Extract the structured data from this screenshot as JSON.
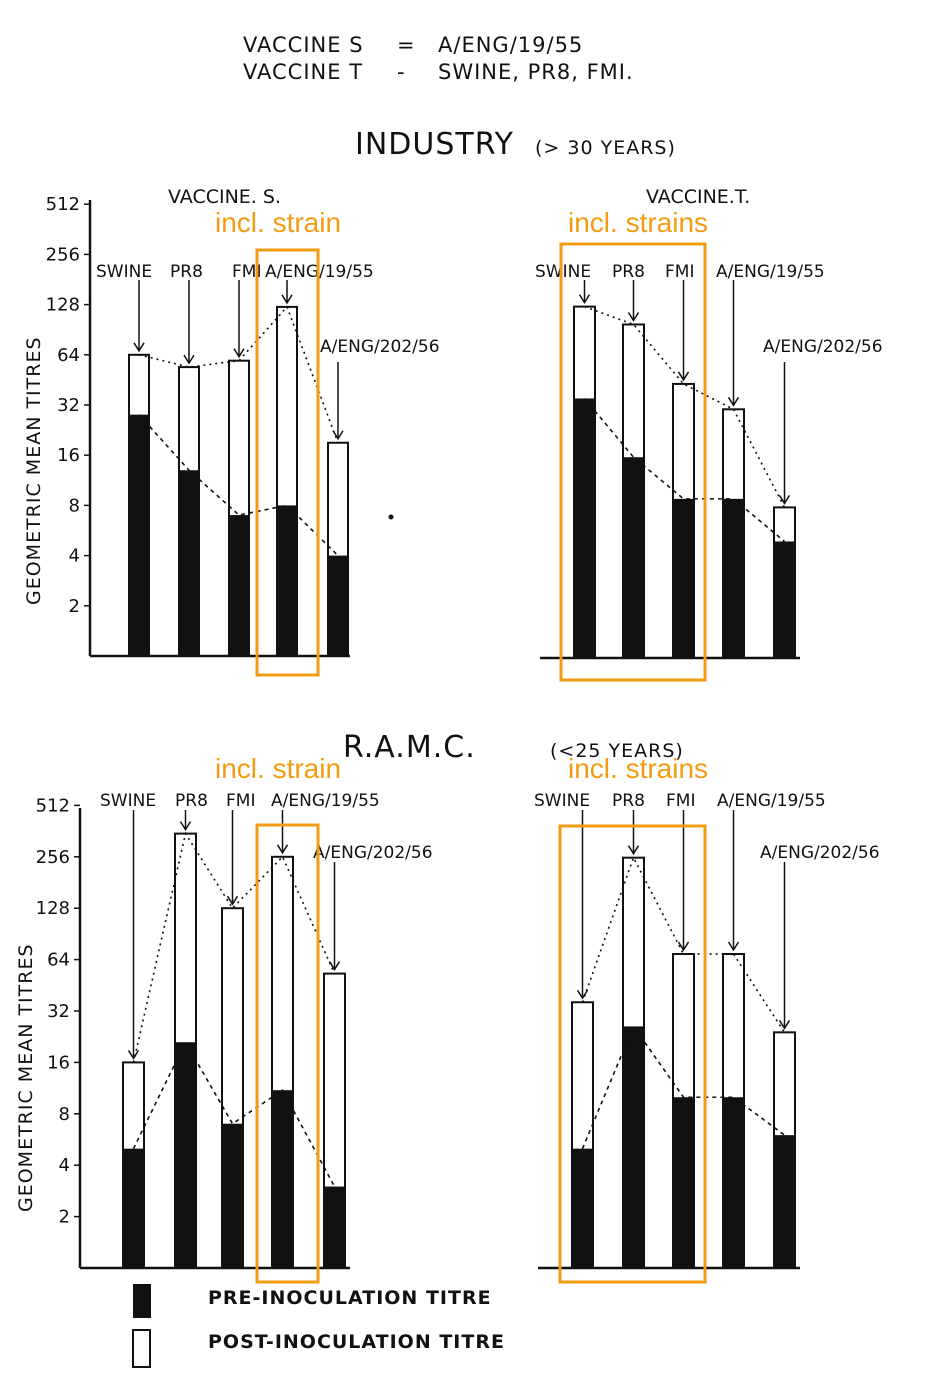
{
  "header": {
    "line1_left": "VACCINE S",
    "line1_sep": "=",
    "line1_right": "A/ENG/19/55",
    "line2_left": "VACCINE T",
    "line2_sep": "-",
    "line2_right": "SWINE, PR8, FMI."
  },
  "sections": {
    "industry_title": "INDUSTRY",
    "industry_age": "(> 30 YEARS)",
    "ramc_title": "R.A.M.C.",
    "ramc_age": "(<25 YEARS)"
  },
  "colors": {
    "ink": "#111111",
    "annotation": "#f39c12",
    "paper": "#ffffff"
  },
  "annotations": {
    "s_note": "incl. strain",
    "t_note": "incl. strains"
  },
  "legend": {
    "pre": "PRE-INOCULATION TITRE",
    "post": "POST-INOCULATION TITRE"
  },
  "chart_data": [
    {
      "type": "bar",
      "title": "VACCINE. S.",
      "ylabel": "GEOMETRIC MEAN TITRES",
      "yscale": "log2",
      "yticks": [
        2,
        4,
        8,
        16,
        32,
        64,
        128,
        256,
        512
      ],
      "ylim": [
        1,
        512
      ],
      "categories": [
        "SWINE",
        "PR8",
        "FMI",
        "A/ENG/19/55",
        "A/ENG/202/56"
      ],
      "series": [
        {
          "name": "PRE-INOCULATION TITRE",
          "values": [
            28,
            13,
            7,
            8,
            4
          ]
        },
        {
          "name": "POST-INOCULATION TITRE",
          "values": [
            64,
            54,
            59,
            124,
            19
          ]
        }
      ]
    },
    {
      "type": "bar",
      "title": "VACCINE.T.",
      "yscale": "log2",
      "ylim": [
        1,
        512
      ],
      "categories": [
        "SWINE",
        "PR8",
        "FMI",
        "A/ENG/19/55",
        "A/ENG/202/56"
      ],
      "series": [
        {
          "name": "PRE-INOCULATION TITRE",
          "values": [
            36,
            16,
            9,
            9,
            5
          ]
        },
        {
          "name": "POST-INOCULATION TITRE",
          "values": [
            128,
            100,
            44,
            31,
            8
          ]
        }
      ]
    },
    {
      "type": "bar",
      "ylabel": "GEOMETRIC MEAN TITRES",
      "yscale": "log2",
      "yticks": [
        2,
        4,
        8,
        16,
        32,
        64,
        128,
        256,
        512
      ],
      "ylim": [
        1,
        512
      ],
      "categories": [
        "SWINE",
        "PR8",
        "FMI",
        "A/ENG/19/55",
        "A/ENG/202/56"
      ],
      "series": [
        {
          "name": "PRE-INOCULATION TITRE",
          "values": [
            5,
            21,
            7,
            11,
            3
          ]
        },
        {
          "name": "POST-INOCULATION TITRE",
          "values": [
            16,
            350,
            128,
            256,
            53
          ]
        }
      ]
    },
    {
      "type": "bar",
      "yscale": "log2",
      "ylim": [
        1,
        512
      ],
      "categories": [
        "SWINE",
        "PR8",
        "FMI",
        "A/ENG/19/55",
        "A/ENG/202/56"
      ],
      "series": [
        {
          "name": "PRE-INOCULATION TITRE",
          "values": [
            5,
            26,
            10,
            10,
            6
          ]
        },
        {
          "name": "POST-INOCULATION TITRE",
          "values": [
            36,
            253,
            69,
            69,
            24
          ]
        }
      ]
    }
  ]
}
